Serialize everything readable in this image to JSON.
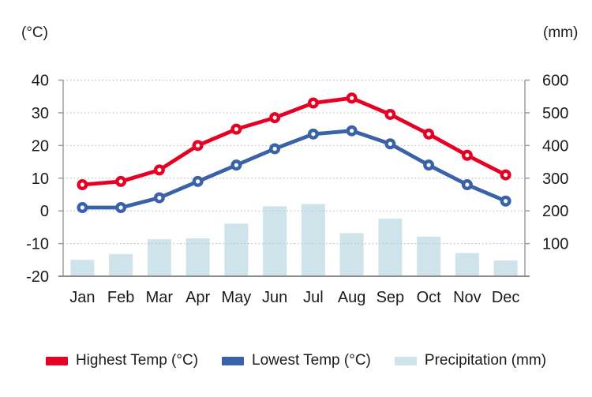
{
  "chart_data": {
    "type": "combo",
    "title": "",
    "categories": [
      "Jan",
      "Feb",
      "Mar",
      "Apr",
      "May",
      "Jun",
      "Jul",
      "Aug",
      "Sep",
      "Oct",
      "Nov",
      "Dec"
    ],
    "series": [
      {
        "name": "Highest Temp (°C)",
        "type": "line",
        "axis": "left",
        "color": "#e60023",
        "values": [
          8,
          9,
          12.5,
          20,
          25,
          28.5,
          33,
          34.5,
          29.5,
          23.5,
          17,
          11
        ]
      },
      {
        "name": "Lowest Temp (°C)",
        "type": "line",
        "axis": "left",
        "color": "#3a62a8",
        "values": [
          1,
          1,
          4,
          9,
          14,
          19,
          23.5,
          24.5,
          20.5,
          14,
          8,
          3
        ]
      },
      {
        "name": "Precipitation (mm)",
        "type": "bar",
        "axis": "right",
        "color": "#cfe3ea",
        "values": [
          50,
          68,
          113,
          116,
          161,
          214,
          221,
          132,
          176,
          121,
          71,
          48
        ]
      }
    ],
    "left_axis": {
      "label": "(°C)",
      "min": -20,
      "max": 40,
      "ticks": [
        40,
        30,
        20,
        10,
        0,
        -10,
        -20
      ]
    },
    "right_axis": {
      "label": "(mm)",
      "min": 0,
      "max": 600,
      "ticks": [
        600,
        500,
        400,
        300,
        200,
        100
      ]
    },
    "grid": true,
    "legend_position": "bottom"
  },
  "colors": {
    "grid": "#bfbfbf",
    "axis": "#9e9e9e",
    "baseline": "#8c8c8c",
    "text": "#1b1b1b",
    "background": "#ffffff"
  }
}
